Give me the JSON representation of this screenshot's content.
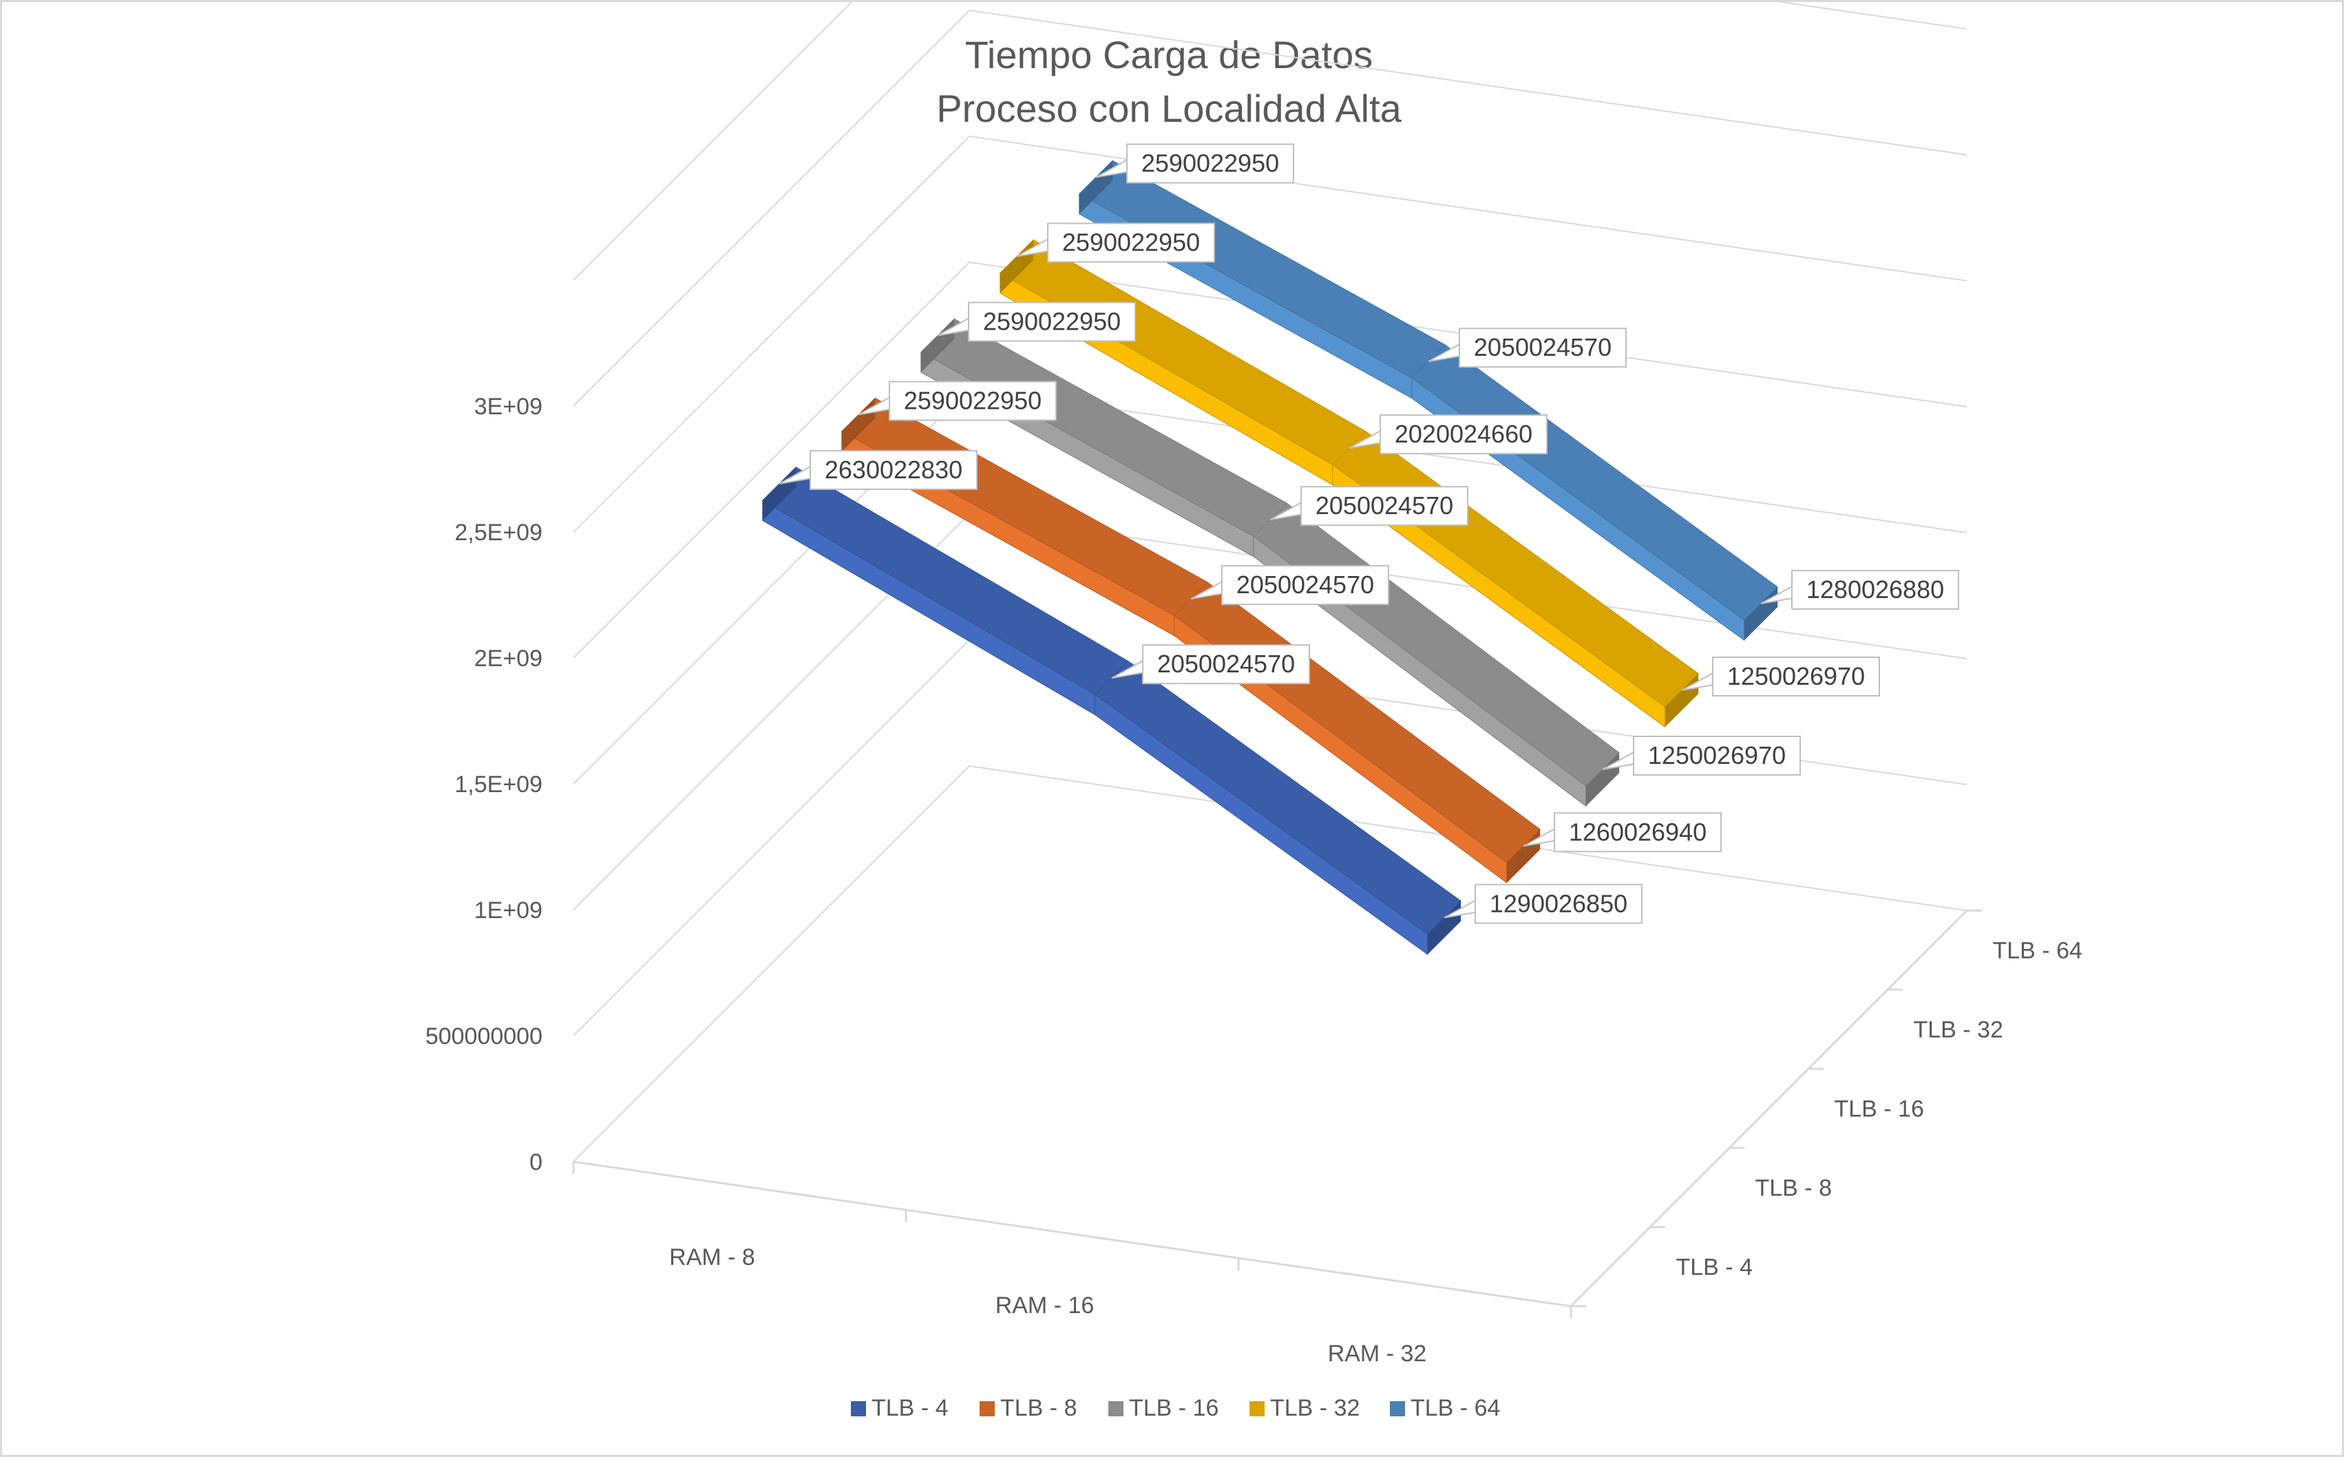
{
  "chart_data": {
    "type": "line",
    "subtype": "3d-ribbon",
    "title": [
      "Tiempo Carga de Datos",
      "Proceso con Localidad Alta"
    ],
    "categories": [
      "RAM - 8",
      "RAM - 16",
      "RAM - 32"
    ],
    "series": [
      {
        "name": "TLB - 4",
        "color": "#3A5DA8",
        "values": [
          2630022830,
          2050024570,
          1290026850
        ]
      },
      {
        "name": "TLB - 8",
        "color": "#C96427",
        "values": [
          2590022950,
          2050024570,
          1260026940
        ]
      },
      {
        "name": "TLB - 16",
        "color": "#8C8C8C",
        "values": [
          2590022950,
          2050024570,
          1250026970
        ]
      },
      {
        "name": "TLB - 32",
        "color": "#D9A400",
        "values": [
          2590022950,
          2020024660,
          1250026970
        ]
      },
      {
        "name": "TLB - 64",
        "color": "#4A80B5",
        "values": [
          2590022950,
          2050024570,
          1280026880
        ]
      }
    ],
    "depth_axis_labels": [
      "TLB - 4",
      "TLB - 8",
      "TLB - 16",
      "TLB - 32",
      "TLB - 64"
    ],
    "y_ticks": [
      0,
      500000000,
      1000000000,
      1500000000,
      2000000000,
      2500000000,
      3000000000
    ],
    "y_tick_labels": [
      "0",
      "500000000",
      "1E+09",
      "1,5E+09",
      "2E+09",
      "2,5E+09",
      "3E+09"
    ],
    "ylim": [
      0,
      3500000000
    ],
    "data_labels": [
      [
        "2630022830",
        "2050024570",
        "1290026850"
      ],
      [
        "2590022950",
        "2050024570",
        "1260026940"
      ],
      [
        "2590022950",
        "2050024570",
        "1250026970"
      ],
      [
        "2590022950",
        "2020024660",
        "1250026970"
      ],
      [
        "2590022950",
        "2050024570",
        "1280026880"
      ]
    ],
    "grid": true,
    "legend_position": "bottom",
    "xlabel": "",
    "ylabel": ""
  }
}
